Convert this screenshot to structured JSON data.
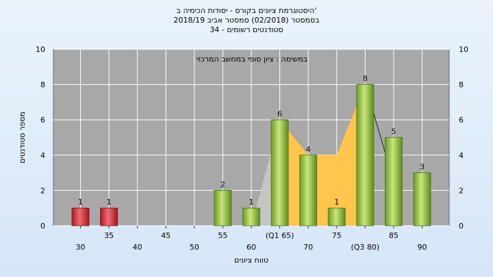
{
  "chart_data": {
    "type": "bar",
    "title_lines": [
      "היסטוגרמת ציונים בקורס - יסודות הכימיה ב'",
      "בסמסטר  (02/2018)  סמסטר אביב 2018/19",
      "סטודנטים רשומים - 34"
    ],
    "annotation": "במשימה : ציון סופי במחשב המרכזי",
    "xlabel": "טווח ציונים",
    "ylabel": "מספר סטודנטים",
    "ylim": [
      0,
      10
    ],
    "yticks": [
      0,
      2,
      4,
      6,
      8,
      10
    ],
    "grid": true,
    "categories": [
      "30",
      "35",
      "40",
      "45",
      "50",
      "55",
      "60",
      "(Q1 65)",
      "70",
      "75",
      "(Q3 80)",
      "85",
      "90"
    ],
    "values": [
      1,
      1,
      0,
      0,
      0,
      2,
      1,
      6,
      4,
      1,
      8,
      5,
      3
    ],
    "value_labels": [
      "1",
      "1",
      "",
      "",
      "",
      "2",
      "1",
      "6",
      "4",
      "1",
      "8",
      "5",
      "3"
    ],
    "bar_colors": [
      "#d8262e",
      "#d8262e",
      "#8fbf3a",
      "#8fbf3a",
      "#8fbf3a",
      "#8fbf3a",
      "#8fbf3a",
      "#8fbf3a",
      "#8fbf3a",
      "#8fbf3a",
      "#8fbf3a",
      "#8fbf3a",
      "#8fbf3a"
    ],
    "quartile_area": {
      "color": "#ffc54d",
      "points": [
        [
          7,
          6
        ],
        [
          8,
          4
        ],
        [
          9,
          4
        ],
        [
          10,
          8
        ]
      ]
    },
    "whisker_area": {
      "color": "#c8c8c8",
      "points": [
        [
          6,
          0
        ],
        [
          7,
          6
        ]
      ]
    },
    "whisker_line": {
      "color": "#333333",
      "points": [
        [
          10,
          8
        ],
        [
          11,
          2.5
        ]
      ]
    }
  }
}
